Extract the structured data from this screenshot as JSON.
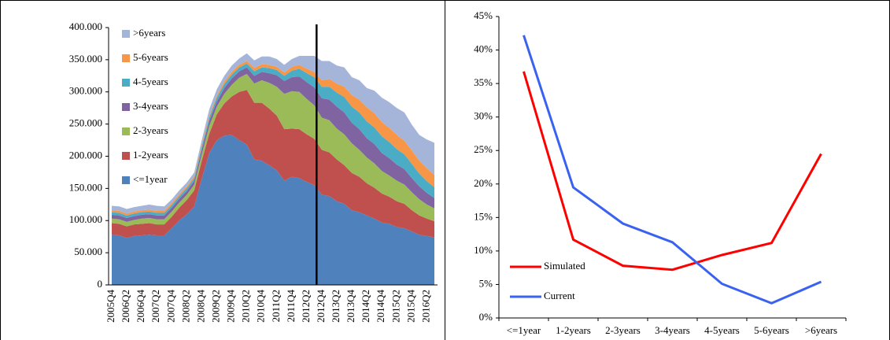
{
  "chart_data": [
    {
      "type": "stacked_area",
      "categories": [
        "2005Q4",
        null,
        "2006Q2",
        null,
        "2006Q4",
        null,
        "2007Q2",
        null,
        "2007Q4",
        null,
        "2008Q2",
        null,
        "2008Q4",
        null,
        "2009Q2",
        null,
        "2009Q4",
        null,
        "2010Q2",
        null,
        "2010Q4",
        null,
        "2011Q2",
        null,
        "2011Q4",
        null,
        "2012Q2",
        null,
        "2012Q4",
        null,
        "2013Q2",
        null,
        "2013Q4",
        null,
        "2014Q2",
        null,
        "2014Q4",
        null,
        "2015Q2",
        null,
        "2015Q4",
        null,
        "2016Q2",
        null
      ],
      "series": [
        {
          "name": "<=1year",
          "color": "#4f81bd",
          "values": [
            78000,
            77000,
            73000,
            76000,
            77000,
            78000,
            77000,
            77000,
            88000,
            100000,
            110000,
            122000,
            165000,
            205000,
            225000,
            232000,
            233000,
            225000,
            218000,
            195000,
            193000,
            186000,
            178000,
            162000,
            168000,
            166000,
            160000,
            155000,
            140000,
            138000,
            130000,
            126000,
            116000,
            113000,
            108000,
            103000,
            97000,
            95000,
            90000,
            88000,
            83000,
            78000,
            76000,
            74000
          ]
        },
        {
          "name": "1-2years",
          "color": "#c0504d",
          "values": [
            18000,
            18000,
            18000,
            18000,
            18000,
            18000,
            17000,
            17000,
            18000,
            20000,
            22000,
            25000,
            28000,
            30000,
            40000,
            50000,
            60000,
            75000,
            85000,
            88000,
            90000,
            88000,
            85000,
            80000,
            75000,
            76000,
            74000,
            72000,
            70000,
            68000,
            65000,
            60000,
            58000,
            55000,
            50000,
            48000,
            45000,
            42000,
            40000,
            38000,
            33000,
            30000,
            27000,
            25000
          ]
        },
        {
          "name": "2-3years",
          "color": "#9bbb59",
          "values": [
            7000,
            7000,
            7000,
            7000,
            8000,
            8000,
            8000,
            8000,
            8000,
            8000,
            8000,
            9000,
            10000,
            12000,
            12000,
            15000,
            18000,
            22000,
            25000,
            30000,
            35000,
            40000,
            45000,
            55000,
            58000,
            58000,
            55000,
            52000,
            50000,
            50000,
            48000,
            48000,
            46000,
            42000,
            40000,
            38000,
            35000,
            33000,
            32000,
            30000,
            28000,
            25000,
            22000,
            20000
          ]
        },
        {
          "name": "3-4years",
          "color": "#8064a2",
          "values": [
            6000,
            6000,
            6000,
            6000,
            6000,
            6000,
            6000,
            6000,
            6000,
            6000,
            6000,
            6000,
            7000,
            8000,
            8000,
            9000,
            10000,
            10000,
            10000,
            12000,
            13000,
            15000,
            18000,
            20000,
            22000,
            24000,
            26000,
            28000,
            30000,
            32000,
            34000,
            34000,
            32000,
            32000,
            30000,
            30000,
            28000,
            27000,
            25000,
            24000,
            22000,
            20000,
            18000,
            16000
          ]
        },
        {
          "name": "4-5years",
          "color": "#4bacc6",
          "values": [
            4000,
            4000,
            4000,
            4000,
            4000,
            4000,
            4000,
            4000,
            4000,
            4000,
            4000,
            4000,
            5000,
            5000,
            6000,
            6000,
            6000,
            6000,
            6000,
            7000,
            7000,
            8000,
            8000,
            8000,
            10000,
            12000,
            14000,
            16000,
            18000,
            20000,
            22000,
            24000,
            25000,
            26000,
            26000,
            26000,
            26000,
            25000,
            24000,
            23000,
            22000,
            20000,
            18000,
            17000
          ]
        },
        {
          "name": "5-6years",
          "color": "#f79646",
          "values": [
            3000,
            3000,
            3000,
            3000,
            3000,
            3000,
            3000,
            3000,
            3000,
            3000,
            3000,
            3000,
            3000,
            3000,
            3000,
            4000,
            4000,
            4000,
            4000,
            5000,
            5000,
            5000,
            5000,
            5000,
            6000,
            6000,
            7000,
            8000,
            10000,
            12000,
            14000,
            16000,
            18000,
            20000,
            22000,
            22000,
            22000,
            22000,
            22000,
            21000,
            21000,
            20000,
            20000,
            19000
          ]
        },
        {
          "name": ">6years",
          "color": "#a5b5d9",
          "values": [
            7000,
            7000,
            7000,
            7000,
            7000,
            8000,
            8000,
            7000,
            6000,
            6000,
            6000,
            6000,
            7000,
            10000,
            10000,
            9000,
            10000,
            10000,
            12000,
            12000,
            12000,
            13000,
            12000,
            12000,
            12000,
            14000,
            20000,
            25000,
            30000,
            28000,
            28000,
            30000,
            28000,
            30000,
            30000,
            35000,
            38000,
            40000,
            42000,
            44000,
            40000,
            40000,
            45000,
            50000
          ]
        }
      ],
      "ylim": [
        0,
        400000
      ],
      "yticks": [
        0,
        {
          "value": 50000,
          "label": "50.000"
        },
        {
          "value": 100000,
          "label": "100.000"
        },
        {
          "value": 150000,
          "label": "150.000"
        },
        {
          "value": 200000,
          "label": "200.000"
        },
        {
          "value": 250000,
          "label": "250.000"
        },
        {
          "value": 300000,
          "label": "300.000"
        },
        {
          "value": 350000,
          "label": "350.000"
        },
        {
          "value": 400000,
          "label": "400.000"
        }
      ],
      "grid": false,
      "legend": "upper-left"
    },
    {
      "type": "line",
      "categories": [
        "<=1year",
        "1-2years",
        "2-3years",
        "3-4years",
        "4-5years",
        "5-6years",
        ">6years"
      ],
      "series": [
        {
          "name": "Simulated",
          "color": "#ff0000",
          "values": [
            36.8,
            11.7,
            7.8,
            7.2,
            9.4,
            11.2,
            24.5
          ]
        },
        {
          "name": "Current",
          "color": "#3a62f0",
          "values": [
            42.2,
            19.5,
            14.1,
            11.3,
            5.1,
            2.2,
            5.4
          ]
        }
      ],
      "ylim": [
        0,
        45
      ],
      "yticks": [
        {
          "value": 0,
          "label": "0%"
        },
        {
          "value": 5,
          "label": "5%"
        },
        {
          "value": 10,
          "label": "10%"
        },
        {
          "value": 15,
          "label": "15%"
        },
        {
          "value": 20,
          "label": "20%"
        },
        {
          "value": 25,
          "label": "25%"
        },
        {
          "value": 30,
          "label": "30%"
        },
        {
          "value": 35,
          "label": "35%"
        },
        {
          "value": 40,
          "label": "40%"
        },
        {
          "value": 45,
          "label": "45%"
        }
      ],
      "grid": false,
      "legend": "left"
    }
  ]
}
